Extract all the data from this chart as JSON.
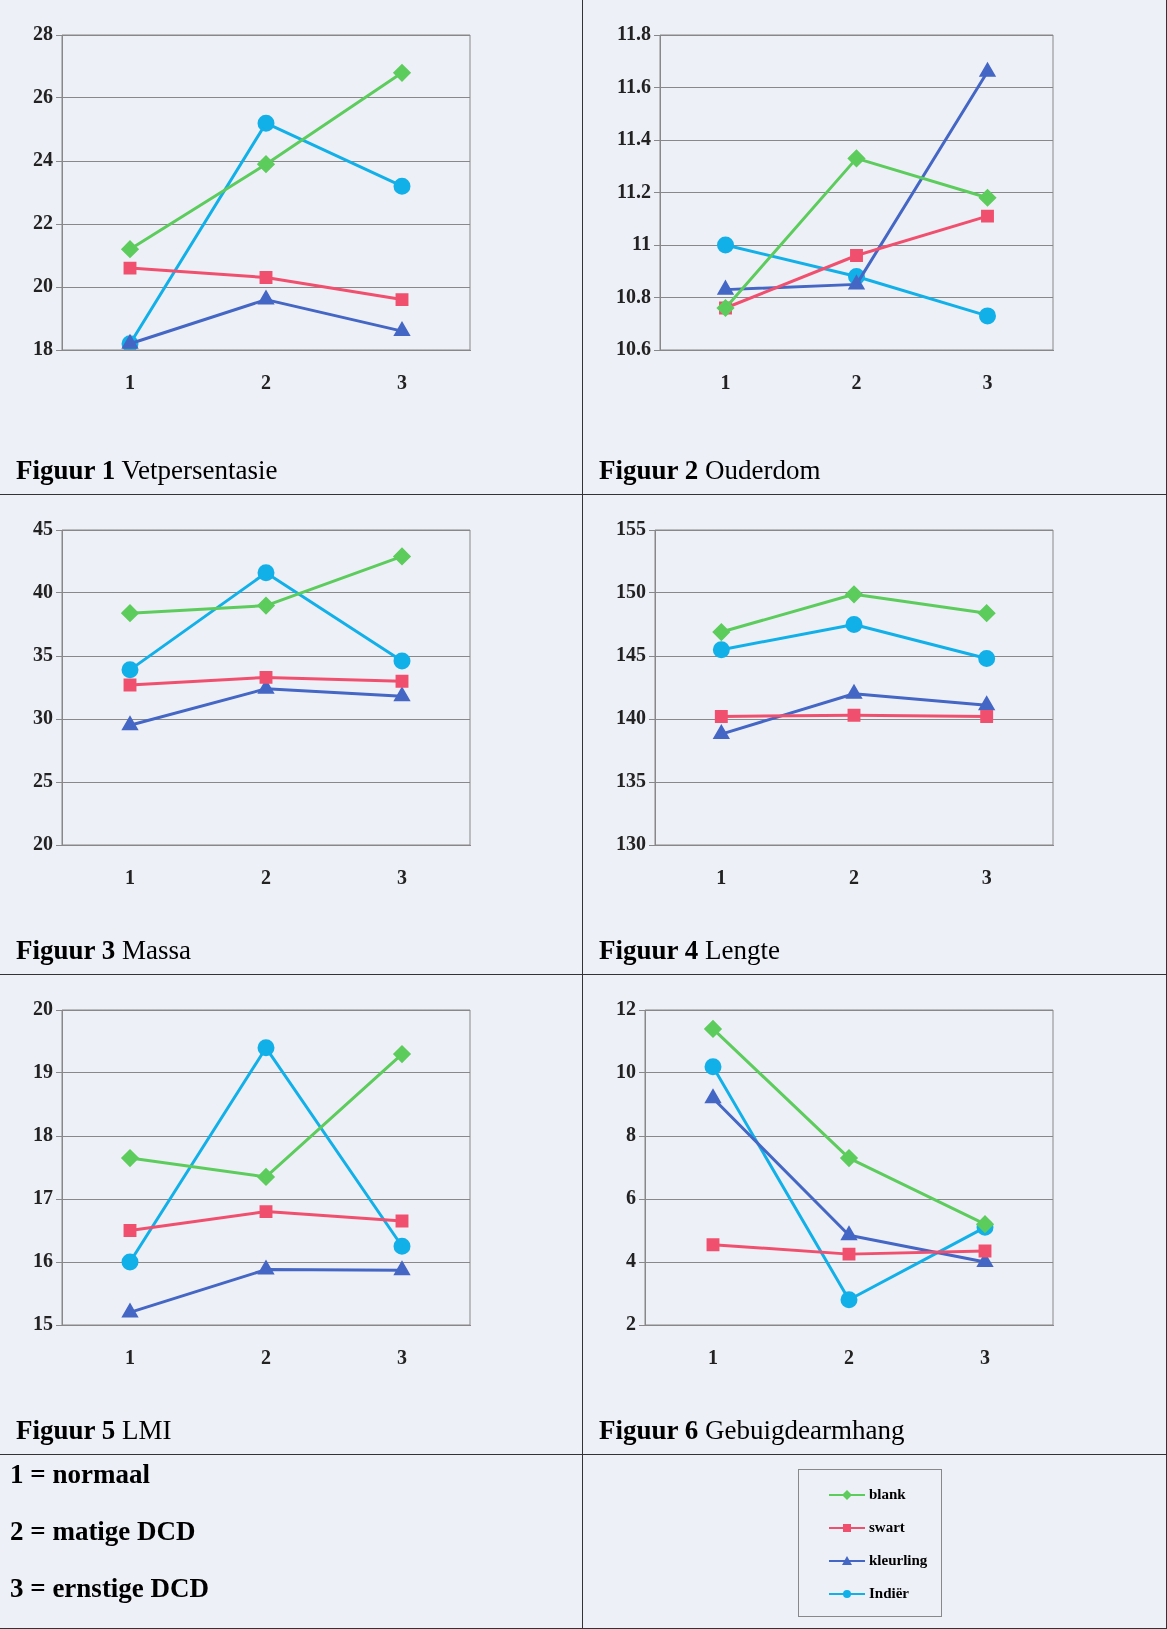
{
  "chart_data": [
    {
      "type": "line",
      "title": "Figuur 1  Vetpersentasie",
      "categories": [
        "1",
        "2",
        "3"
      ],
      "ylim": [
        18,
        28
      ],
      "yticks": [
        18,
        20,
        22,
        24,
        26,
        28
      ],
      "grid": "y",
      "series": [
        {
          "color": "#5ccc5c",
          "marker": "diamond",
          "values": [
            21.2,
            23.9,
            26.8
          ]
        },
        {
          "color": "#f0506e",
          "marker": "square",
          "values": [
            20.6,
            20.3,
            19.6
          ]
        },
        {
          "color": "#4466c4",
          "marker": "triangle",
          "values": [
            18.2,
            19.6,
            18.6
          ]
        },
        {
          "color": "#12b0e8",
          "marker": "circle",
          "values": [
            18.2,
            25.2,
            23.2
          ]
        }
      ]
    },
    {
      "type": "line",
      "title": "Figuur 2  Ouderdom",
      "categories": [
        "1",
        "2",
        "3"
      ],
      "ylim": [
        10.6,
        11.8
      ],
      "yticks": [
        10.6,
        10.8,
        11,
        11.2,
        11.4,
        11.6,
        11.8
      ],
      "grid": "y",
      "series": [
        {
          "color": "#5ccc5c",
          "marker": "diamond",
          "values": [
            10.76,
            11.33,
            11.18
          ]
        },
        {
          "color": "#f0506e",
          "marker": "square",
          "values": [
            10.76,
            10.96,
            11.11
          ]
        },
        {
          "color": "#4466c4",
          "marker": "triangle",
          "values": [
            10.83,
            10.85,
            11.66
          ]
        },
        {
          "color": "#12b0e8",
          "marker": "circle",
          "values": [
            11.0,
            10.88,
            10.73
          ]
        }
      ]
    },
    {
      "type": "line",
      "title": "Figuur 3  Massa",
      "categories": [
        "1",
        "2",
        "3"
      ],
      "ylim": [
        20,
        45
      ],
      "yticks": [
        20,
        25,
        30,
        35,
        40,
        45
      ],
      "grid": "y",
      "series": [
        {
          "color": "#5ccc5c",
          "marker": "diamond",
          "values": [
            38.4,
            39.0,
            42.9
          ]
        },
        {
          "color": "#f0506e",
          "marker": "square",
          "values": [
            32.7,
            33.3,
            33.0
          ]
        },
        {
          "color": "#4466c4",
          "marker": "triangle",
          "values": [
            29.5,
            32.4,
            31.8
          ]
        },
        {
          "color": "#12b0e8",
          "marker": "circle",
          "values": [
            33.9,
            41.6,
            34.6
          ]
        }
      ]
    },
    {
      "type": "line",
      "title": "Figuur  4  Lengte",
      "categories": [
        "1",
        "2",
        "3"
      ],
      "ylim": [
        130,
        155
      ],
      "yticks": [
        130,
        135,
        140,
        145,
        150,
        155
      ],
      "grid": "y",
      "series": [
        {
          "color": "#5ccc5c",
          "marker": "diamond",
          "values": [
            146.9,
            149.9,
            148.4
          ]
        },
        {
          "color": "#f0506e",
          "marker": "square",
          "values": [
            140.2,
            140.3,
            140.2
          ]
        },
        {
          "color": "#4466c4",
          "marker": "triangle",
          "values": [
            138.8,
            142.0,
            141.1
          ]
        },
        {
          "color": "#12b0e8",
          "marker": "circle",
          "values": [
            145.5,
            147.5,
            144.8
          ]
        }
      ]
    },
    {
      "type": "line",
      "title": "Figuur 5  LMI",
      "categories": [
        "1",
        "2",
        "3"
      ],
      "ylim": [
        15,
        20
      ],
      "yticks": [
        15,
        16,
        17,
        18,
        19,
        20
      ],
      "grid": "y",
      "annotations": [
        "1 =  normaal",
        "2 = matige DCD",
        "3 = ernstige DCD"
      ],
      "series": [
        {
          "color": "#5ccc5c",
          "marker": "diamond",
          "values": [
            17.65,
            17.35,
            19.3
          ]
        },
        {
          "color": "#f0506e",
          "marker": "square",
          "values": [
            16.5,
            16.8,
            16.65
          ]
        },
        {
          "color": "#4466c4",
          "marker": "triangle",
          "values": [
            15.2,
            15.88,
            15.87
          ]
        },
        {
          "color": "#12b0e8",
          "marker": "circle",
          "values": [
            16.0,
            19.4,
            16.25
          ]
        }
      ]
    },
    {
      "type": "line",
      "title": "Figuur 6  Gebuigdearmhang",
      "categories": [
        "1",
        "2",
        "3"
      ],
      "ylim": [
        2,
        12
      ],
      "yticks": [
        2,
        4,
        6,
        8,
        10,
        12
      ],
      "grid": "y",
      "legend": "bottom",
      "series": [
        {
          "name": "blank",
          "color": "#5ccc5c",
          "marker": "diamond",
          "values": [
            11.4,
            7.3,
            5.2
          ]
        },
        {
          "name": "swart",
          "color": "#f0506e",
          "marker": "square",
          "values": [
            4.55,
            4.25,
            4.35
          ]
        },
        {
          "name": "kleurling",
          "color": "#4466c4",
          "marker": "triangle",
          "values": [
            9.2,
            4.85,
            4.0
          ]
        },
        {
          "name": "Indiër",
          "color": "#12b0e8",
          "marker": "circle",
          "values": [
            10.2,
            2.8,
            5.1
          ]
        }
      ]
    }
  ]
}
